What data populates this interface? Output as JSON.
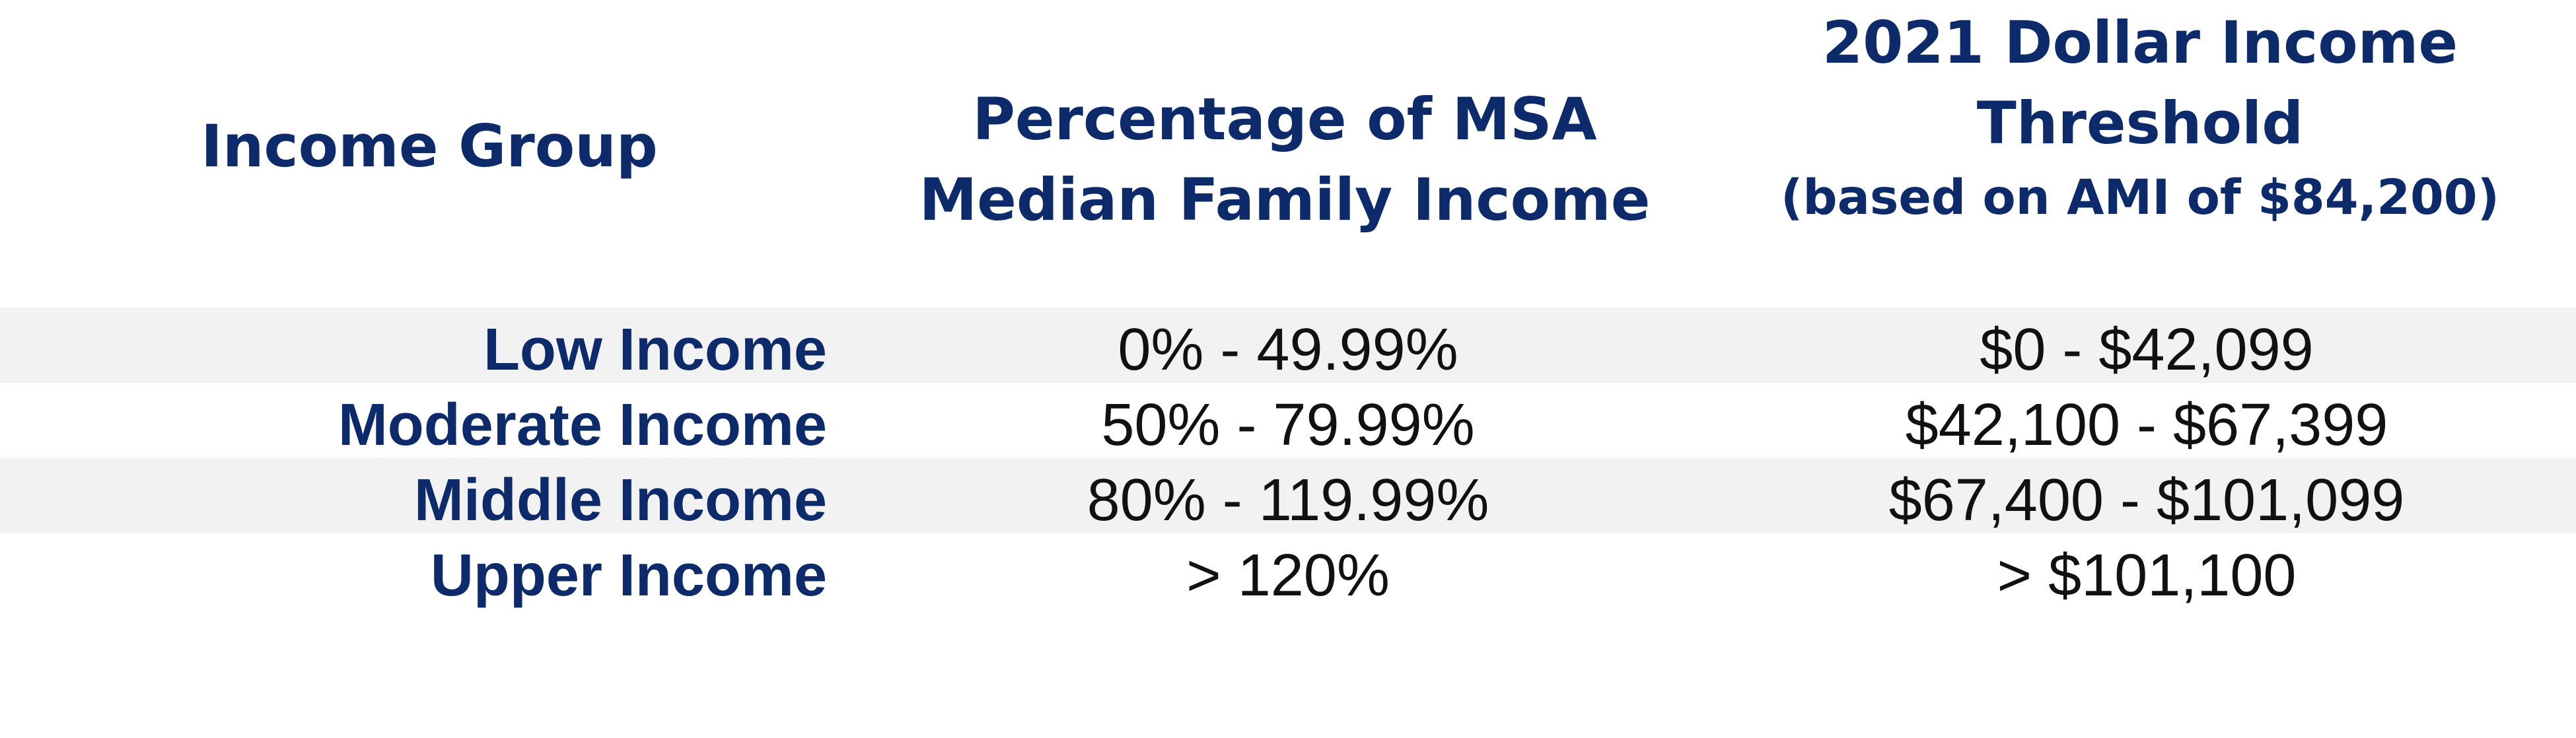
{
  "header": {
    "income_group": "Income Group",
    "percentage_line1": "Percentage of MSA",
    "percentage_line2": "Median Family Income",
    "dollar_line1": "2021 Dollar Income",
    "dollar_line2": "Threshold",
    "dollar_line3": "(based on AMI of $84,200)"
  },
  "rows": [
    {
      "group": "Low Income",
      "percentage": "0% - 49.99%",
      "dollar": "$0 - $42,099"
    },
    {
      "group": "Moderate Income",
      "percentage": "50% - 79.99%",
      "dollar": "$42,100 - $67,399"
    },
    {
      "group": "Middle Income",
      "percentage": "80% - 119.99%",
      "dollar": "$67,400 - $101,099"
    },
    {
      "group": "Upper Income",
      "percentage": "> 120%",
      "dollar": "> $101,100"
    }
  ],
  "colors": {
    "heading": "#0d2a6b",
    "row_shade": "#f2f2f2",
    "value_text": "#111111"
  }
}
